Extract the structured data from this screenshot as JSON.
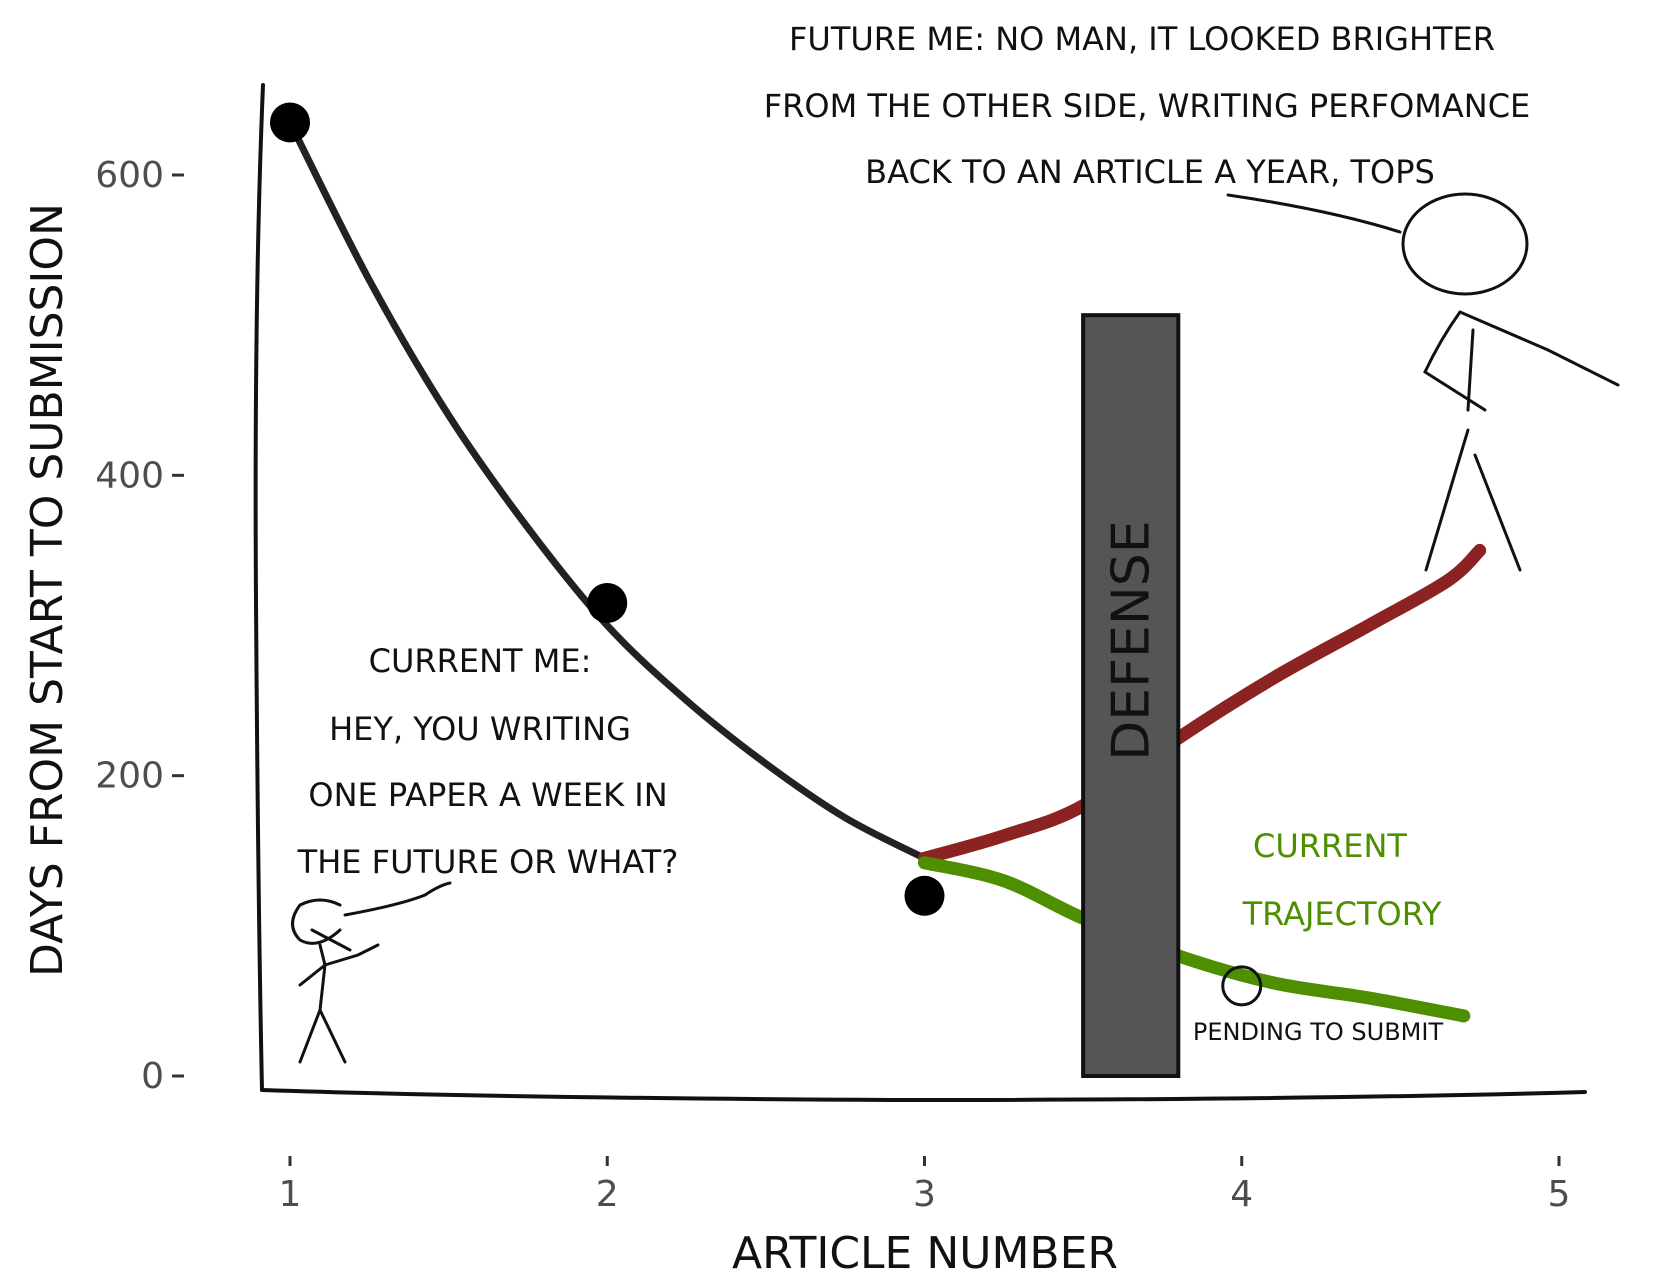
{
  "chart_data": {
    "type": "scatter",
    "xlabel": "ARTICLE NUMBER",
    "ylabel": "DAYS FROM START TO SUBMISSION",
    "xlim": [
      0.93,
      5.07
    ],
    "ylim": [
      -40,
      670
    ],
    "xticks": [
      "1",
      "2",
      "3",
      "4",
      "5"
    ],
    "yticks": [
      "0",
      "200",
      "400",
      "600"
    ],
    "grid": false,
    "points": [
      {
        "x": 1,
        "y": 635,
        "style": "filled"
      },
      {
        "x": 2,
        "y": 315,
        "style": "filled"
      },
      {
        "x": 3,
        "y": 120,
        "style": "filled"
      },
      {
        "x": 4,
        "y": 60,
        "style": "hollow"
      }
    ],
    "fit_curve": {
      "color": "#222222",
      "points": [
        [
          1,
          635
        ],
        [
          1.25,
          530
        ],
        [
          1.5,
          440
        ],
        [
          1.75,
          365
        ],
        [
          2,
          300
        ],
        [
          2.25,
          250
        ],
        [
          2.5,
          208
        ],
        [
          2.75,
          172
        ],
        [
          3,
          145
        ]
      ]
    },
    "projections": [
      {
        "label": "",
        "color": "#8b2323",
        "points": [
          [
            3,
            145
          ],
          [
            3.25,
            160
          ],
          [
            3.5,
            180
          ],
          [
            3.8,
            225
          ],
          [
            4.1,
            265
          ],
          [
            4.4,
            300
          ],
          [
            4.65,
            330
          ],
          [
            4.75,
            350
          ]
        ]
      },
      {
        "label": "CURRENT TRAJECTORY",
        "color": "#4d8f00",
        "points": [
          [
            3,
            142
          ],
          [
            3.25,
            130
          ],
          [
            3.5,
            105
          ],
          [
            3.8,
            80
          ],
          [
            4.1,
            62
          ],
          [
            4.4,
            52
          ],
          [
            4.7,
            40
          ]
        ]
      }
    ],
    "defense_bar": {
      "label": "DEFENSE",
      "x_start": 3.5,
      "x_end": 3.8,
      "y_top": 500,
      "color": "#555555"
    },
    "annotations": {
      "current_me": [
        "CURRENT ME:",
        "HEY, YOU WRITING",
        "ONE PAPER A WEEK IN",
        "THE FUTURE OR WHAT?"
      ],
      "future_me": [
        "FUTURE ME: NO MAN, IT LOOKED BRIGHTER",
        "FROM THE OTHER SIDE, WRITING PERFOMANCE",
        "BACK TO AN ARTICLE A YEAR, TOPS"
      ],
      "pending": "PENDING TO SUBMIT",
      "trajectory": [
        "CURRENT",
        "TRAJECTORY"
      ]
    }
  }
}
